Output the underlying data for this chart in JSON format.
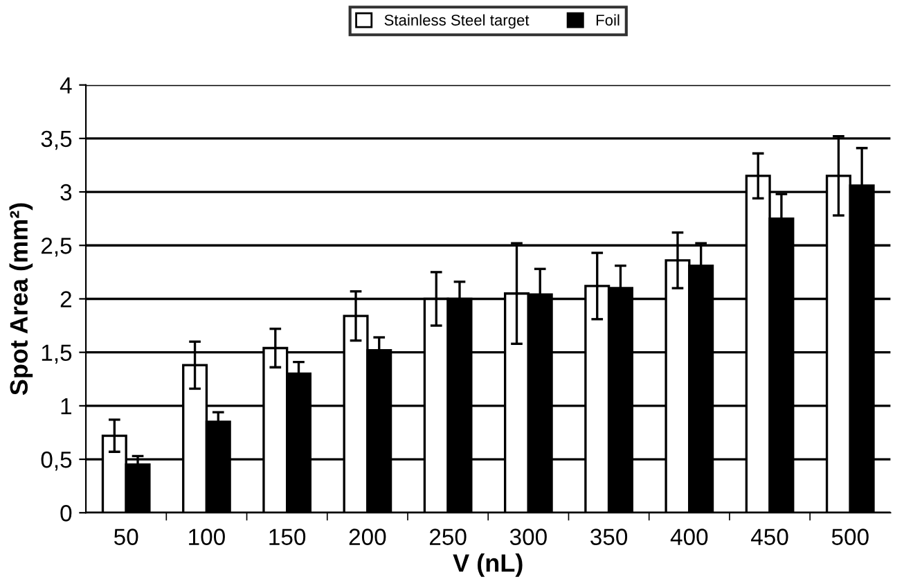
{
  "chart_data": {
    "type": "bar",
    "xlabel": "V (nL)",
    "ylabel": "Spot Area (mm²)",
    "categories": [
      "50",
      "100",
      "150",
      "200",
      "250",
      "300",
      "350",
      "400",
      "450",
      "500"
    ],
    "series": [
      {
        "name": "Stainless Steel target",
        "color": "#ffffff",
        "values": [
          0.72,
          1.38,
          1.54,
          1.84,
          2.0,
          2.05,
          2.12,
          2.36,
          3.15,
          3.15
        ],
        "errors": [
          0.15,
          0.22,
          0.18,
          0.23,
          0.25,
          0.47,
          0.31,
          0.26,
          0.21,
          0.37
        ]
      },
      {
        "name": "Foil",
        "color": "#000000",
        "values": [
          0.45,
          0.85,
          1.3,
          1.52,
          2.0,
          2.04,
          2.1,
          2.31,
          2.75,
          3.06
        ],
        "errors": [
          0.08,
          0.09,
          0.11,
          0.12,
          0.16,
          0.24,
          0.21,
          0.21,
          0.23,
          0.35
        ]
      }
    ],
    "ylim": [
      0,
      4
    ],
    "yticks": [
      0,
      {
        "value": 0.5,
        "label": "0,5"
      },
      1,
      {
        "value": 1.5,
        "label": "1,5"
      },
      2,
      {
        "value": 2.5,
        "label": "2,5"
      },
      3,
      {
        "value": 3.5,
        "label": "3,5"
      },
      4
    ],
    "grid": "y",
    "legend": "top"
  }
}
